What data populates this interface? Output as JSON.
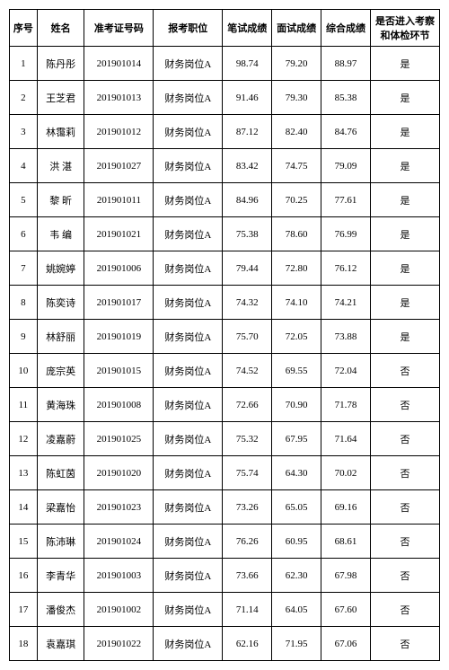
{
  "table": {
    "columns": [
      "序号",
      "姓名",
      "准考证号码",
      "报考职位",
      "笔试成绩",
      "面试成绩",
      "综合成绩",
      "是否进入考察和体检环节"
    ],
    "rows": [
      {
        "seq": "1",
        "name": "陈丹彤",
        "exam": "201901014",
        "pos": "财务岗位A",
        "written": "98.74",
        "interview": "79.20",
        "total": "88.97",
        "pass": "是"
      },
      {
        "seq": "2",
        "name": "王芝君",
        "exam": "201901013",
        "pos": "财务岗位A",
        "written": "91.46",
        "interview": "79.30",
        "total": "85.38",
        "pass": "是"
      },
      {
        "seq": "3",
        "name": "林霭莉",
        "exam": "201901012",
        "pos": "财务岗位A",
        "written": "87.12",
        "interview": "82.40",
        "total": "84.76",
        "pass": "是"
      },
      {
        "seq": "4",
        "name": "洪 湛",
        "exam": "201901027",
        "pos": "财务岗位A",
        "written": "83.42",
        "interview": "74.75",
        "total": "79.09",
        "pass": "是"
      },
      {
        "seq": "5",
        "name": "黎 昕",
        "exam": "201901011",
        "pos": "财务岗位A",
        "written": "84.96",
        "interview": "70.25",
        "total": "77.61",
        "pass": "是"
      },
      {
        "seq": "6",
        "name": "韦 编",
        "exam": "201901021",
        "pos": "财务岗位A",
        "written": "75.38",
        "interview": "78.60",
        "total": "76.99",
        "pass": "是"
      },
      {
        "seq": "7",
        "name": "姚婉婷",
        "exam": "201901006",
        "pos": "财务岗位A",
        "written": "79.44",
        "interview": "72.80",
        "total": "76.12",
        "pass": "是"
      },
      {
        "seq": "8",
        "name": "陈奕诗",
        "exam": "201901017",
        "pos": "财务岗位A",
        "written": "74.32",
        "interview": "74.10",
        "total": "74.21",
        "pass": "是"
      },
      {
        "seq": "9",
        "name": "林舒丽",
        "exam": "201901019",
        "pos": "财务岗位A",
        "written": "75.70",
        "interview": "72.05",
        "total": "73.88",
        "pass": "是"
      },
      {
        "seq": "10",
        "name": "庞宗英",
        "exam": "201901015",
        "pos": "财务岗位A",
        "written": "74.52",
        "interview": "69.55",
        "total": "72.04",
        "pass": "否"
      },
      {
        "seq": "11",
        "name": "黄海珠",
        "exam": "201901008",
        "pos": "财务岗位A",
        "written": "72.66",
        "interview": "70.90",
        "total": "71.78",
        "pass": "否"
      },
      {
        "seq": "12",
        "name": "凌嘉蔚",
        "exam": "201901025",
        "pos": "财务岗位A",
        "written": "75.32",
        "interview": "67.95",
        "total": "71.64",
        "pass": "否"
      },
      {
        "seq": "13",
        "name": "陈虹茵",
        "exam": "201901020",
        "pos": "财务岗位A",
        "written": "75.74",
        "interview": "64.30",
        "total": "70.02",
        "pass": "否"
      },
      {
        "seq": "14",
        "name": "梁嘉怡",
        "exam": "201901023",
        "pos": "财务岗位A",
        "written": "73.26",
        "interview": "65.05",
        "total": "69.16",
        "pass": "否"
      },
      {
        "seq": "15",
        "name": "陈沛琳",
        "exam": "201901024",
        "pos": "财务岗位A",
        "written": "76.26",
        "interview": "60.95",
        "total": "68.61",
        "pass": "否"
      },
      {
        "seq": "16",
        "name": "李青华",
        "exam": "201901003",
        "pos": "财务岗位A",
        "written": "73.66",
        "interview": "62.30",
        "total": "67.98",
        "pass": "否"
      },
      {
        "seq": "17",
        "name": "潘俊杰",
        "exam": "201901002",
        "pos": "财务岗位A",
        "written": "71.14",
        "interview": "64.05",
        "total": "67.60",
        "pass": "否"
      },
      {
        "seq": "18",
        "name": "袁嘉琪",
        "exam": "201901022",
        "pos": "财务岗位A",
        "written": "62.16",
        "interview": "71.95",
        "total": "67.06",
        "pass": "否"
      }
    ]
  }
}
